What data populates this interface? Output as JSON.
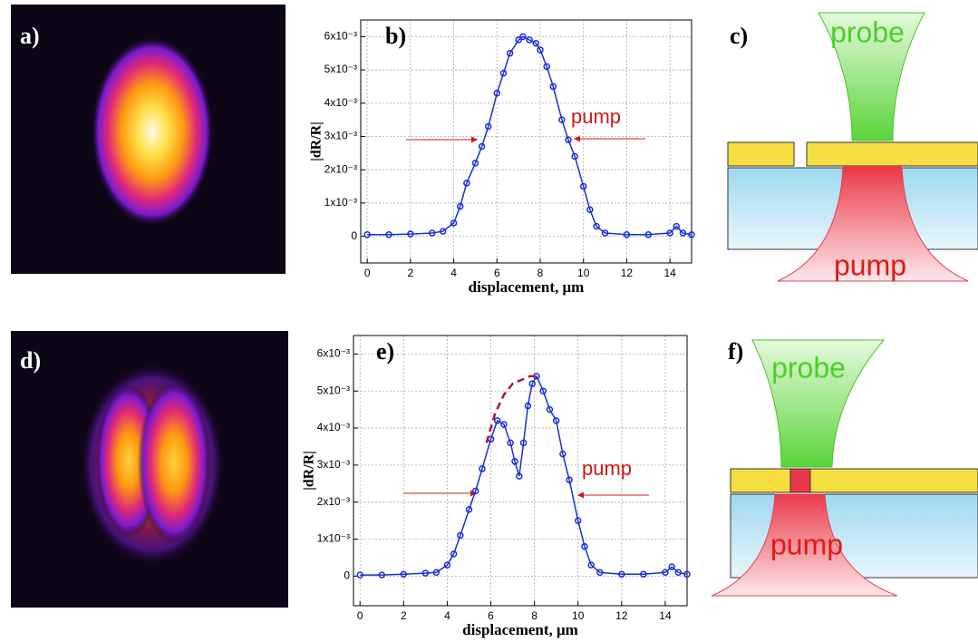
{
  "images": [
    {
      "label": "a)"
    },
    {
      "label": "d)"
    }
  ],
  "diagrams": [
    {
      "label": "c)",
      "probe": "probe",
      "pump": "pump"
    },
    {
      "label": "f)",
      "probe": "probe",
      "pump": "pump"
    }
  ],
  "chart_data": [
    {
      "type": "line",
      "label": "b)",
      "annotation": "pump",
      "xlabel": "displacement, μm",
      "ylabel": "|dR/R|",
      "xlim": [
        -0.3,
        15
      ],
      "ylim": [
        -0.0008,
        0.0065
      ],
      "xticks": [
        0,
        2,
        4,
        6,
        8,
        10,
        12,
        14
      ],
      "yticks": [
        {
          "value": 0,
          "label": "0"
        },
        {
          "value": 0.001,
          "label": "1x10⁻³"
        },
        {
          "value": 0.002,
          "label": "2x10⁻³"
        },
        {
          "value": 0.003,
          "label": "3x10⁻³"
        },
        {
          "value": 0.004,
          "label": "4x10⁻³"
        },
        {
          "value": 0.005,
          "label": "5x10⁻³"
        },
        {
          "value": 0.006,
          "label": "6x10⁻³"
        }
      ],
      "grid": true,
      "series": [
        {
          "color": "#1a2fd6",
          "dashed": false,
          "markers": true,
          "x": [
            0,
            1,
            2,
            3,
            3.5,
            4,
            4.3,
            4.6,
            5,
            5.3,
            5.6,
            6,
            6.3,
            6.6,
            7,
            7.2,
            7.5,
            7.8,
            8,
            8.3,
            8.6,
            9,
            9.3,
            9.6,
            10,
            10.3,
            10.6,
            11,
            12,
            13,
            14,
            14.3,
            14.6,
            15
          ],
          "values": [
            5e-05,
            5e-05,
            7e-05,
            0.0001,
            0.00015,
            0.0004,
            0.0009,
            0.0016,
            0.0022,
            0.0027,
            0.0033,
            0.0043,
            0.0049,
            0.0055,
            0.0059,
            0.006,
            0.0059,
            0.0058,
            0.0056,
            0.0051,
            0.0045,
            0.0035,
            0.0029,
            0.0024,
            0.0015,
            0.0008,
            0.0003,
            0.0001,
            5e-05,
            5e-05,
            0.0001,
            0.0003,
            0.0001,
            5e-05
          ]
        }
      ]
    },
    {
      "type": "line",
      "label": "e)",
      "annotation": "pump",
      "xlabel": "displacement, μm",
      "ylabel": "|dR/R|",
      "xlim": [
        -0.3,
        15
      ],
      "ylim": [
        -0.0008,
        0.0065
      ],
      "xticks": [
        0,
        2,
        4,
        6,
        8,
        10,
        12,
        14
      ],
      "yticks": [
        {
          "value": 0,
          "label": "0"
        },
        {
          "value": 0.001,
          "label": "1x10⁻³"
        },
        {
          "value": 0.002,
          "label": "2x10⁻³"
        },
        {
          "value": 0.003,
          "label": "3x10⁻³"
        },
        {
          "value": 0.004,
          "label": "4x10⁻³"
        },
        {
          "value": 0.005,
          "label": "5x10⁻³"
        },
        {
          "value": 0.006,
          "label": "6x10⁻³"
        }
      ],
      "grid": true,
      "series": [
        {
          "color": "#1a2fd6",
          "dashed": false,
          "markers": true,
          "x": [
            0,
            1,
            2,
            3,
            3.5,
            4,
            4.3,
            4.6,
            5,
            5.3,
            5.6,
            6,
            6.3,
            6.6,
            6.9,
            7.1,
            7.3,
            7.5,
            7.7,
            7.9,
            8.1,
            8.4,
            8.7,
            9,
            9.3,
            9.6,
            10,
            10.3,
            10.6,
            11,
            12,
            13,
            14,
            14.3,
            14.6,
            15
          ],
          "values": [
            3e-05,
            3e-05,
            5e-05,
            8e-05,
            0.0001,
            0.0003,
            0.0006,
            0.0011,
            0.0018,
            0.0023,
            0.0029,
            0.0037,
            0.0042,
            0.0041,
            0.0036,
            0.0031,
            0.0027,
            0.0036,
            0.0046,
            0.0052,
            0.0054,
            0.005,
            0.0045,
            0.0042,
            0.0033,
            0.0026,
            0.0015,
            0.0008,
            0.0003,
            0.0001,
            5e-05,
            5e-05,
            0.0001,
            0.00025,
            0.0001,
            5e-05
          ]
        },
        {
          "color": "#b0182c",
          "dashed": true,
          "markers": false,
          "x": [
            5.8,
            6.2,
            6.6,
            7,
            7.4,
            7.8,
            8.1
          ],
          "values": [
            0.0036,
            0.0044,
            0.0049,
            0.0052,
            0.0053,
            0.0054,
            0.0054
          ]
        }
      ]
    }
  ]
}
